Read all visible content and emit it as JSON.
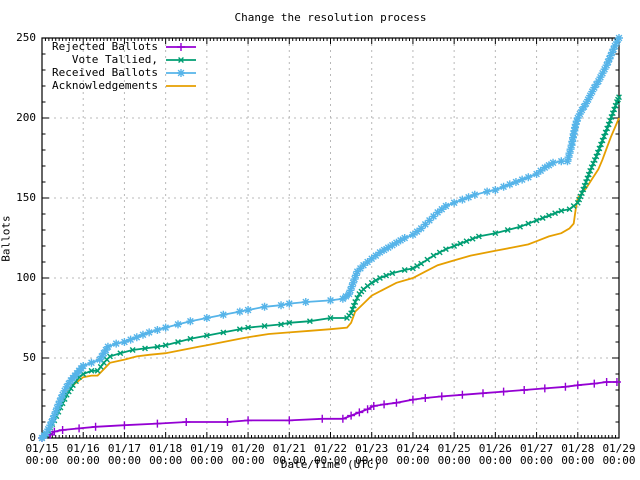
{
  "title": "Change the resolution process",
  "axes": {
    "ylabel": "Ballots",
    "xlabel": "Date/Time (UTC)"
  },
  "legend": {
    "entries": [
      {
        "label": "Rejected Ballots",
        "series": 0
      },
      {
        "label": "Vote Tallied,",
        "series": 1
      },
      {
        "label": "Received Ballots",
        "series": 2
      },
      {
        "label": "Acknowledgements",
        "series": 3
      }
    ]
  },
  "chart_data": {
    "type": "line",
    "title": "Change the resolution process",
    "xlabel": "Date/Time (UTC)",
    "ylabel": "Ballots",
    "x_unit": "days since 01/15 00:00 UTC",
    "xlim": [
      0,
      14
    ],
    "ylim": [
      0,
      250
    ],
    "y_ticks": [
      0,
      50,
      100,
      150,
      200,
      250
    ],
    "x_tick_labels": [
      {
        "date": "01/15",
        "time": "00:00"
      },
      {
        "date": "01/16",
        "time": "00:00"
      },
      {
        "date": "01/17",
        "time": "00:00"
      },
      {
        "date": "01/18",
        "time": "00:00"
      },
      {
        "date": "01/19",
        "time": "00:00"
      },
      {
        "date": "01/20",
        "time": "00:00"
      },
      {
        "date": "01/21",
        "time": "00:00"
      },
      {
        "date": "01/22",
        "time": "00:00"
      },
      {
        "date": "01/23",
        "time": "00:00"
      },
      {
        "date": "01/24",
        "time": "00:00"
      },
      {
        "date": "01/25",
        "time": "00:00"
      },
      {
        "date": "01/26",
        "time": "00:00"
      },
      {
        "date": "01/27",
        "time": "00:00"
      },
      {
        "date": "01/28",
        "time": "00:00"
      },
      {
        "date": "01/29",
        "time": "00:00"
      }
    ],
    "grid": true,
    "legend_position": "top-left",
    "colors": {
      "grid": "#b8b8b8",
      "axis": "#000000"
    },
    "series": [
      {
        "name": "Rejected Ballots",
        "color": "#9400d3",
        "marker": "plus",
        "points": [
          [
            0,
            0
          ],
          [
            0.2,
            2
          ],
          [
            0.3,
            4
          ],
          [
            0.5,
            5
          ],
          [
            0.9,
            6
          ],
          [
            1.3,
            7
          ],
          [
            2.0,
            8
          ],
          [
            2.8,
            9
          ],
          [
            3.5,
            10
          ],
          [
            4.5,
            10
          ],
          [
            5.0,
            11
          ],
          [
            6.0,
            11
          ],
          [
            6.8,
            12
          ],
          [
            7.3,
            12
          ],
          [
            7.5,
            14
          ],
          [
            7.7,
            16
          ],
          [
            7.9,
            18
          ],
          [
            8.05,
            20
          ],
          [
            8.3,
            21
          ],
          [
            8.6,
            22
          ],
          [
            9.0,
            24
          ],
          [
            9.3,
            25
          ],
          [
            9.7,
            26
          ],
          [
            10.2,
            27
          ],
          [
            10.7,
            28
          ],
          [
            11.2,
            29
          ],
          [
            11.7,
            30
          ],
          [
            12.2,
            31
          ],
          [
            12.7,
            32
          ],
          [
            13.0,
            33
          ],
          [
            13.4,
            34
          ],
          [
            13.7,
            35
          ],
          [
            13.95,
            35
          ]
        ]
      },
      {
        "name": "Vote Tallied,",
        "color": "#009e73",
        "marker": "cross",
        "points": [
          [
            0,
            0
          ],
          [
            0.15,
            4
          ],
          [
            0.3,
            11
          ],
          [
            0.45,
            19
          ],
          [
            0.6,
            27
          ],
          [
            0.75,
            33
          ],
          [
            0.9,
            38
          ],
          [
            1.0,
            40
          ],
          [
            1.2,
            42
          ],
          [
            1.35,
            42
          ],
          [
            1.5,
            47
          ],
          [
            1.65,
            51
          ],
          [
            1.9,
            53
          ],
          [
            2.2,
            55
          ],
          [
            2.5,
            56
          ],
          [
            2.8,
            57
          ],
          [
            3.0,
            58
          ],
          [
            3.3,
            60
          ],
          [
            3.6,
            62
          ],
          [
            4.0,
            64
          ],
          [
            4.4,
            66
          ],
          [
            4.8,
            68
          ],
          [
            5.0,
            69
          ],
          [
            5.4,
            70
          ],
          [
            5.8,
            71
          ],
          [
            6.0,
            72
          ],
          [
            6.5,
            73
          ],
          [
            7.0,
            75
          ],
          [
            7.4,
            75
          ],
          [
            7.5,
            78
          ],
          [
            7.6,
            85
          ],
          [
            7.7,
            90
          ],
          [
            7.8,
            93
          ],
          [
            8.0,
            97
          ],
          [
            8.2,
            100
          ],
          [
            8.5,
            103
          ],
          [
            8.8,
            105
          ],
          [
            9.0,
            106
          ],
          [
            9.2,
            109
          ],
          [
            9.5,
            114
          ],
          [
            9.8,
            118
          ],
          [
            10.0,
            120
          ],
          [
            10.3,
            123
          ],
          [
            10.6,
            126
          ],
          [
            11.0,
            128
          ],
          [
            11.3,
            130
          ],
          [
            11.6,
            132
          ],
          [
            12.0,
            136
          ],
          [
            12.3,
            139
          ],
          [
            12.6,
            142
          ],
          [
            12.8,
            143
          ],
          [
            13.0,
            147
          ],
          [
            13.1,
            153
          ],
          [
            13.2,
            160
          ],
          [
            13.3,
            167
          ],
          [
            13.45,
            176
          ],
          [
            13.6,
            186
          ],
          [
            13.75,
            196
          ],
          [
            13.85,
            203
          ],
          [
            13.95,
            210
          ],
          [
            14.0,
            213
          ]
        ]
      },
      {
        "name": "Received Ballots",
        "color": "#56b4e9",
        "marker": "asterisk",
        "points": [
          [
            0,
            0
          ],
          [
            0.1,
            3
          ],
          [
            0.2,
            8
          ],
          [
            0.3,
            14
          ],
          [
            0.4,
            21
          ],
          [
            0.5,
            27
          ],
          [
            0.6,
            32
          ],
          [
            0.7,
            36
          ],
          [
            0.8,
            39
          ],
          [
            0.9,
            42
          ],
          [
            1.0,
            45
          ],
          [
            1.2,
            47
          ],
          [
            1.4,
            49
          ],
          [
            1.5,
            53
          ],
          [
            1.6,
            57
          ],
          [
            1.8,
            59
          ],
          [
            2.0,
            60
          ],
          [
            2.3,
            63
          ],
          [
            2.6,
            66
          ],
          [
            3.0,
            69
          ],
          [
            3.3,
            71
          ],
          [
            3.6,
            73
          ],
          [
            4.0,
            75
          ],
          [
            4.4,
            77
          ],
          [
            4.8,
            79
          ],
          [
            5.0,
            80
          ],
          [
            5.4,
            82
          ],
          [
            5.8,
            83
          ],
          [
            6.0,
            84
          ],
          [
            6.4,
            85
          ],
          [
            7.0,
            86
          ],
          [
            7.3,
            87
          ],
          [
            7.45,
            90
          ],
          [
            7.55,
            97
          ],
          [
            7.65,
            104
          ],
          [
            7.8,
            108
          ],
          [
            8.0,
            112
          ],
          [
            8.2,
            116
          ],
          [
            8.4,
            119
          ],
          [
            8.6,
            122
          ],
          [
            8.8,
            125
          ],
          [
            9.0,
            127
          ],
          [
            9.2,
            131
          ],
          [
            9.4,
            136
          ],
          [
            9.6,
            141
          ],
          [
            9.8,
            145
          ],
          [
            10.0,
            147
          ],
          [
            10.2,
            149
          ],
          [
            10.5,
            152
          ],
          [
            10.8,
            154
          ],
          [
            11.0,
            155
          ],
          [
            11.2,
            157
          ],
          [
            11.5,
            160
          ],
          [
            11.8,
            163
          ],
          [
            12.0,
            165
          ],
          [
            12.2,
            169
          ],
          [
            12.4,
            172
          ],
          [
            12.6,
            173
          ],
          [
            12.75,
            173
          ],
          [
            12.85,
            183
          ],
          [
            12.9,
            190
          ],
          [
            12.95,
            196
          ],
          [
            13.0,
            200
          ],
          [
            13.1,
            205
          ],
          [
            13.2,
            209
          ],
          [
            13.3,
            214
          ],
          [
            13.4,
            219
          ],
          [
            13.5,
            223
          ],
          [
            13.6,
            228
          ],
          [
            13.7,
            233
          ],
          [
            13.8,
            239
          ],
          [
            13.9,
            245
          ],
          [
            14.0,
            250
          ]
        ]
      },
      {
        "name": "Acknowledgements",
        "color": "#e69f00",
        "marker": "none",
        "points": [
          [
            0,
            0
          ],
          [
            0.15,
            5
          ],
          [
            0.3,
            12
          ],
          [
            0.45,
            20
          ],
          [
            0.6,
            28
          ],
          [
            0.75,
            33
          ],
          [
            0.9,
            36
          ],
          [
            1.0,
            38
          ],
          [
            1.2,
            39
          ],
          [
            1.35,
            39
          ],
          [
            1.5,
            43
          ],
          [
            1.65,
            47
          ],
          [
            2.0,
            49
          ],
          [
            2.3,
            51
          ],
          [
            2.6,
            52
          ],
          [
            3.0,
            53
          ],
          [
            3.4,
            55
          ],
          [
            3.8,
            57
          ],
          [
            4.0,
            58
          ],
          [
            4.4,
            60
          ],
          [
            4.8,
            62
          ],
          [
            5.0,
            63
          ],
          [
            5.5,
            65
          ],
          [
            6.0,
            66
          ],
          [
            6.5,
            67
          ],
          [
            7.0,
            68
          ],
          [
            7.4,
            69
          ],
          [
            7.5,
            72
          ],
          [
            7.6,
            79
          ],
          [
            7.8,
            84
          ],
          [
            8.0,
            89
          ],
          [
            8.3,
            93
          ],
          [
            8.6,
            97
          ],
          [
            9.0,
            100
          ],
          [
            9.3,
            104
          ],
          [
            9.6,
            108
          ],
          [
            10.0,
            111
          ],
          [
            10.4,
            114
          ],
          [
            10.8,
            116
          ],
          [
            11.0,
            117
          ],
          [
            11.4,
            119
          ],
          [
            11.8,
            121
          ],
          [
            12.0,
            123
          ],
          [
            12.3,
            126
          ],
          [
            12.6,
            128
          ],
          [
            12.8,
            131
          ],
          [
            12.9,
            134
          ],
          [
            12.95,
            143
          ],
          [
            13.0,
            150
          ],
          [
            13.1,
            153
          ],
          [
            13.2,
            156
          ],
          [
            13.35,
            162
          ],
          [
            13.5,
            168
          ],
          [
            13.6,
            174
          ],
          [
            13.7,
            181
          ],
          [
            13.8,
            188
          ],
          [
            13.9,
            194
          ],
          [
            14.0,
            200
          ]
        ]
      }
    ]
  }
}
